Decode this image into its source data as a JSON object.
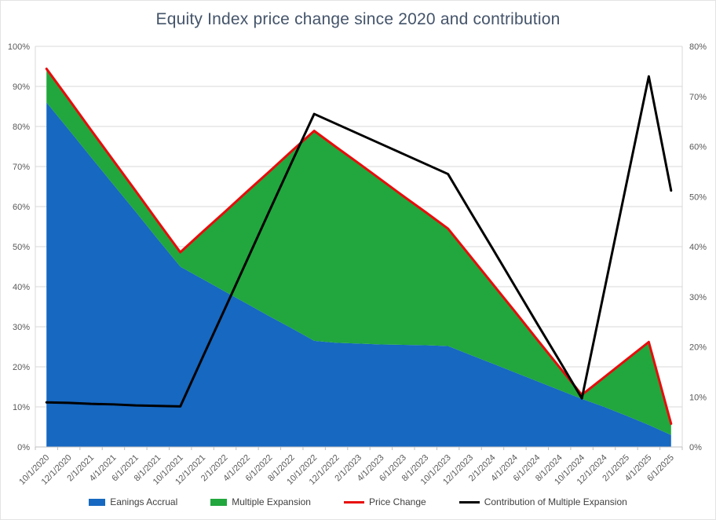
{
  "chart_data": {
    "type": "area",
    "title": "Equity Index price change since 2020 and contribution",
    "categories": [
      "10/1/2020",
      "12/1/2020",
      "2/1/2021",
      "4/1/2021",
      "6/1/2021",
      "8/1/2021",
      "10/1/2021",
      "12/1/2021",
      "2/1/2022",
      "4/1/2022",
      "6/1/2022",
      "8/1/2022",
      "10/1/2022",
      "12/1/2022",
      "2/1/2023",
      "4/1/2023",
      "6/1/2023",
      "8/1/2023",
      "10/1/2023",
      "12/1/2023",
      "2/1/2024",
      "4/1/2024",
      "6/1/2024",
      "8/1/2024",
      "10/1/2024",
      "12/1/2024",
      "2/1/2025",
      "4/1/2025",
      "6/1/2025"
    ],
    "series": [
      {
        "name": "Eanings Accrual",
        "kind": "stacked-area",
        "axis": "left",
        "color": "#1668C1",
        "values": [
          86,
          79.2,
          72.3,
          65.5,
          58.7,
          51.8,
          45,
          41.9,
          38.8,
          35.7,
          32.6,
          29.6,
          26.5,
          26,
          25.8,
          25.6,
          25.5,
          25.4,
          25.2,
          23,
          20.8,
          18.6,
          16.4,
          14.2,
          12,
          10,
          7.8,
          5.5,
          3
        ]
      },
      {
        "name": "Multiple Expansion",
        "kind": "stacked-area",
        "axis": "left",
        "color": "#21A73D",
        "values": [
          8.4,
          7.6,
          6.8,
          6,
          5.2,
          4.4,
          3.6,
          11.8,
          19.9,
          28.1,
          36.2,
          44.3,
          52.4,
          48.8,
          45,
          41.1,
          37.1,
          33.2,
          29.3,
          24.6,
          19.9,
          15.2,
          10.4,
          5.7,
          1,
          7.4,
          14,
          20.7,
          2.8
        ]
      },
      {
        "name": "Price Change",
        "kind": "line",
        "axis": "left",
        "color": "#E80C0C",
        "values": [
          94.4,
          86.8,
          79.1,
          71.5,
          63.9,
          56.2,
          48.6,
          53.7,
          58.7,
          63.8,
          68.8,
          73.9,
          78.9,
          74.8,
          70.8,
          66.7,
          62.6,
          58.6,
          54.5,
          47.6,
          40.7,
          33.8,
          26.8,
          19.9,
          13,
          17.4,
          21.8,
          26.2,
          5.8
        ]
      },
      {
        "name": "Contribution of Multiple Expansion",
        "kind": "line",
        "axis": "right",
        "color": "#000000",
        "values": [
          8.9,
          8.8,
          8.6,
          8.5,
          8.3,
          8.2,
          8.1,
          17.9,
          27.6,
          37.4,
          47.2,
          56.9,
          66.5,
          64.5,
          62.5,
          60.5,
          58.5,
          56.5,
          54.5,
          47,
          39.6,
          32.1,
          24.6,
          17.2,
          9.7,
          31.1,
          52.6,
          74,
          51.2
        ]
      }
    ],
    "axes": {
      "left": {
        "min": 0,
        "max": 100,
        "ticks": [
          "0%",
          "10%",
          "20%",
          "30%",
          "40%",
          "50%",
          "60%",
          "70%",
          "80%",
          "90%",
          "100%"
        ]
      },
      "right": {
        "min": 0,
        "max": 80,
        "ticks": [
          "0%",
          "10%",
          "20%",
          "30%",
          "40%",
          "50%",
          "60%",
          "70%",
          "80%"
        ]
      }
    },
    "grid": true,
    "legend_position": "bottom"
  },
  "style": {
    "gridline_color": "#D9D9D9",
    "axis_line_color": "#BFBFBF",
    "tick_label_color": "#595959",
    "title_color": "#44546A",
    "legend_text_color": "#404040",
    "background": "#FFFFFF"
  }
}
